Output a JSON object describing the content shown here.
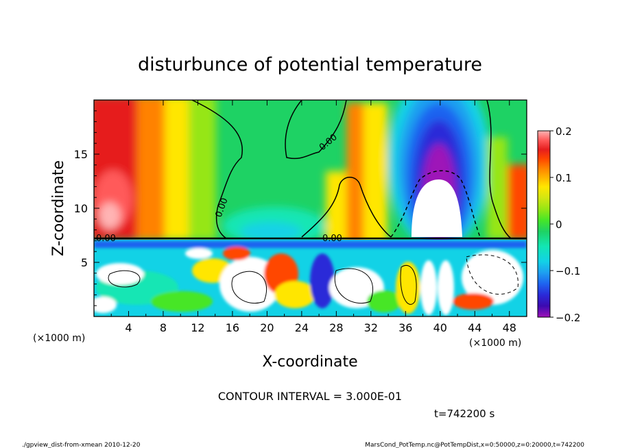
{
  "chart_data": {
    "type": "heatmap",
    "title": "disturbunce of potential temperature",
    "xlabel": "X-coordinate",
    "ylabel": "Z-coordinate",
    "x_unit_label": "(×1000 m)",
    "y_unit_label": "(×1000 m)",
    "xlim": [
      0,
      50
    ],
    "ylim": [
      0,
      20
    ],
    "x_ticks": [
      4,
      8,
      12,
      16,
      20,
      24,
      28,
      32,
      36,
      40,
      44,
      48
    ],
    "y_ticks": [
      5,
      10,
      15
    ],
    "colorbar": {
      "range": [
        -0.2,
        0.2
      ],
      "ticks": [
        0.2,
        0.1,
        0,
        -0.1,
        -0.2
      ],
      "tick_labels": [
        "0.2",
        "0.1",
        "0",
        "−0.1",
        "−0.2"
      ],
      "colors": [
        "#9e12b8",
        "#3c0ab0",
        "#2a2ad8",
        "#1e64f0",
        "#1ea0f0",
        "#12d2e6",
        "#12e6b4",
        "#1ed264",
        "#46e628",
        "#96e614",
        "#d2e612",
        "#ffe600",
        "#ffb400",
        "#ff8200",
        "#ff4600",
        "#e61e1e",
        "#ff5a5a",
        "#ffb4b4"
      ]
    },
    "contour_labels": [
      "0.00",
      "0.00",
      "0.00",
      "0.00"
    ],
    "contour_interval_text": "CONTOUR INTERVAL = 3.000E-01",
    "time_text": "t=742200 s"
  },
  "footer": {
    "left": "./gpview_dist-from-xmean  2010-12-20",
    "right": "MarsCond_PotTemp.nc@PotTempDist,x=0:50000,z=0:20000,t=742200"
  }
}
